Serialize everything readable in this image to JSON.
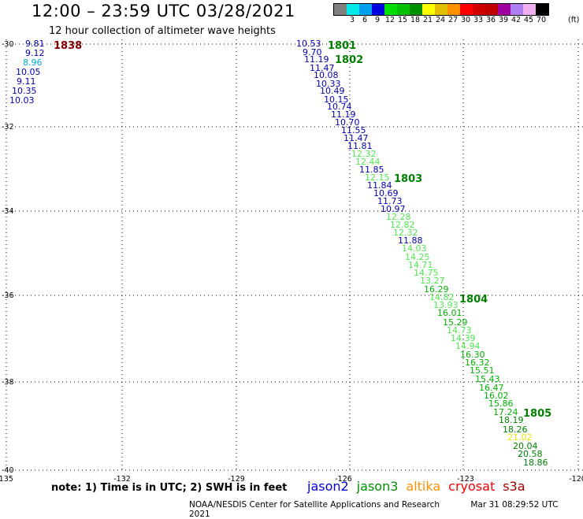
{
  "header": {
    "title": "12:00 – 23:59 UTC 03/28/2021",
    "subtitle": "12 hour collection of altimeter wave heights"
  },
  "legend": {
    "unit": "(ft)",
    "bins": [
      {
        "label": "",
        "color": "#808080"
      },
      {
        "label": "3",
        "color": "#00e8e8"
      },
      {
        "label": "6",
        "color": "#00a0f0"
      },
      {
        "label": "9",
        "color": "#0000e0"
      },
      {
        "label": "12",
        "color": "#00e000"
      },
      {
        "label": "15",
        "color": "#00c000"
      },
      {
        "label": "18",
        "color": "#009000"
      },
      {
        "label": "21",
        "color": "#ffff00"
      },
      {
        "label": "24",
        "color": "#e0c000"
      },
      {
        "label": "27",
        "color": "#ff9000"
      },
      {
        "label": "30",
        "color": "#ff0000"
      },
      {
        "label": "33",
        "color": "#d00000"
      },
      {
        "label": "36",
        "color": "#c00000"
      },
      {
        "label": "39",
        "color": "#a000a0"
      },
      {
        "label": "42",
        "color": "#b080f0"
      },
      {
        "label": "45",
        "color": "#f0b0f0"
      },
      {
        "label": "70",
        "color": "#000000"
      }
    ]
  },
  "axes": {
    "lon_labels": [
      "-135",
      "-132",
      "-129",
      "-126",
      "-123",
      "-120"
    ],
    "lat_labels": [
      "-30",
      "-32",
      "-34",
      "-36",
      "-38",
      "-40"
    ]
  },
  "colors": {
    "dark_blue": "#0000b0",
    "cyan": "#00a8d8",
    "light_green": "#50e850",
    "green": "#00b000",
    "dark_green": "#008000",
    "yellow": "#e8e800",
    "maroon": "#800000"
  },
  "observations": [
    {
      "v": "9.81",
      "c": "dark_blue"
    },
    {
      "v": "9.12",
      "c": "dark_blue"
    },
    {
      "v": "8.96",
      "c": "cyan"
    },
    {
      "v": "10.05",
      "c": "dark_blue"
    },
    {
      "v": "9.11",
      "c": "dark_blue"
    },
    {
      "v": "10.35",
      "c": "dark_blue"
    },
    {
      "v": "10.03",
      "c": "dark_blue"
    },
    {
      "v": "10.53",
      "c": "dark_blue"
    },
    {
      "v": "9.70",
      "c": "dark_blue"
    },
    {
      "v": "11.19",
      "c": "dark_blue"
    },
    {
      "v": "11.47",
      "c": "dark_blue"
    },
    {
      "v": "10.08",
      "c": "dark_blue"
    },
    {
      "v": "10.33",
      "c": "dark_blue"
    },
    {
      "v": "10.49",
      "c": "dark_blue"
    },
    {
      "v": "10.15",
      "c": "dark_blue"
    },
    {
      "v": "10.74",
      "c": "dark_blue"
    },
    {
      "v": "11.19",
      "c": "dark_blue"
    },
    {
      "v": "10.70",
      "c": "dark_blue"
    },
    {
      "v": "11.55",
      "c": "dark_blue"
    },
    {
      "v": "11.47",
      "c": "dark_blue"
    },
    {
      "v": "11.81",
      "c": "dark_blue"
    },
    {
      "v": "12.32",
      "c": "light_green"
    },
    {
      "v": "12.44",
      "c": "light_green"
    },
    {
      "v": "11.85",
      "c": "dark_blue"
    },
    {
      "v": "12.15",
      "c": "light_green"
    },
    {
      "v": "11.84",
      "c": "dark_blue"
    },
    {
      "v": "10.69",
      "c": "dark_blue"
    },
    {
      "v": "11.73",
      "c": "dark_blue"
    },
    {
      "v": "10.97",
      "c": "dark_blue"
    },
    {
      "v": "12.28",
      "c": "light_green"
    },
    {
      "v": "12.82",
      "c": "light_green"
    },
    {
      "v": "12.32",
      "c": "light_green"
    },
    {
      "v": "11.88",
      "c": "dark_blue"
    },
    {
      "v": "14.03",
      "c": "light_green"
    },
    {
      "v": "14.25",
      "c": "light_green"
    },
    {
      "v": "14.71",
      "c": "light_green"
    },
    {
      "v": "14.75",
      "c": "light_green"
    },
    {
      "v": "13.27",
      "c": "light_green"
    },
    {
      "v": "16.29",
      "c": "green"
    },
    {
      "v": "14.82",
      "c": "light_green"
    },
    {
      "v": "13.93",
      "c": "light_green"
    },
    {
      "v": "16.01",
      "c": "green"
    },
    {
      "v": "15.29",
      "c": "green"
    },
    {
      "v": "14.73",
      "c": "light_green"
    },
    {
      "v": "14.39",
      "c": "light_green"
    },
    {
      "v": "14.94",
      "c": "light_green"
    },
    {
      "v": "16.30",
      "c": "green"
    },
    {
      "v": "16.32",
      "c": "green"
    },
    {
      "v": "15.51",
      "c": "green"
    },
    {
      "v": "15.43",
      "c": "green"
    },
    {
      "v": "16.47",
      "c": "green"
    },
    {
      "v": "16.02",
      "c": "green"
    },
    {
      "v": "15.86",
      "c": "green"
    },
    {
      "v": "17.24",
      "c": "green"
    },
    {
      "v": "18.19",
      "c": "dark_green"
    },
    {
      "v": "18.26",
      "c": "dark_green"
    },
    {
      "v": "21.02",
      "c": "yellow"
    },
    {
      "v": "20.04",
      "c": "dark_green"
    },
    {
      "v": "20.58",
      "c": "dark_green"
    },
    {
      "v": "18.86",
      "c": "dark_green"
    }
  ],
  "pass_times": [
    {
      "t": "1838",
      "c": "maroon"
    },
    {
      "t": "1801",
      "c": "dark_green"
    },
    {
      "t": "1802",
      "c": "dark_green"
    },
    {
      "t": "1803",
      "c": "dark_green"
    },
    {
      "t": "1804",
      "c": "dark_green"
    },
    {
      "t": "1805",
      "c": "dark_green"
    }
  ],
  "note": "note:  1) Time is in UTC;  2) SWH is in feet",
  "missions": [
    {
      "name": "jason2",
      "color": "#0000e0"
    },
    {
      "name": "jason3",
      "color": "#009000"
    },
    {
      "name": "altika",
      "color": "#ff9000"
    },
    {
      "name": "cryosat",
      "color": "#ff0000"
    },
    {
      "name": "s3a",
      "color": "#a00000"
    }
  ],
  "footer": {
    "credit": "NOAA/NESDIS Center for Satellite Applications and Research",
    "timestamp": "Mar 31 08:29:52 UTC 2021"
  }
}
